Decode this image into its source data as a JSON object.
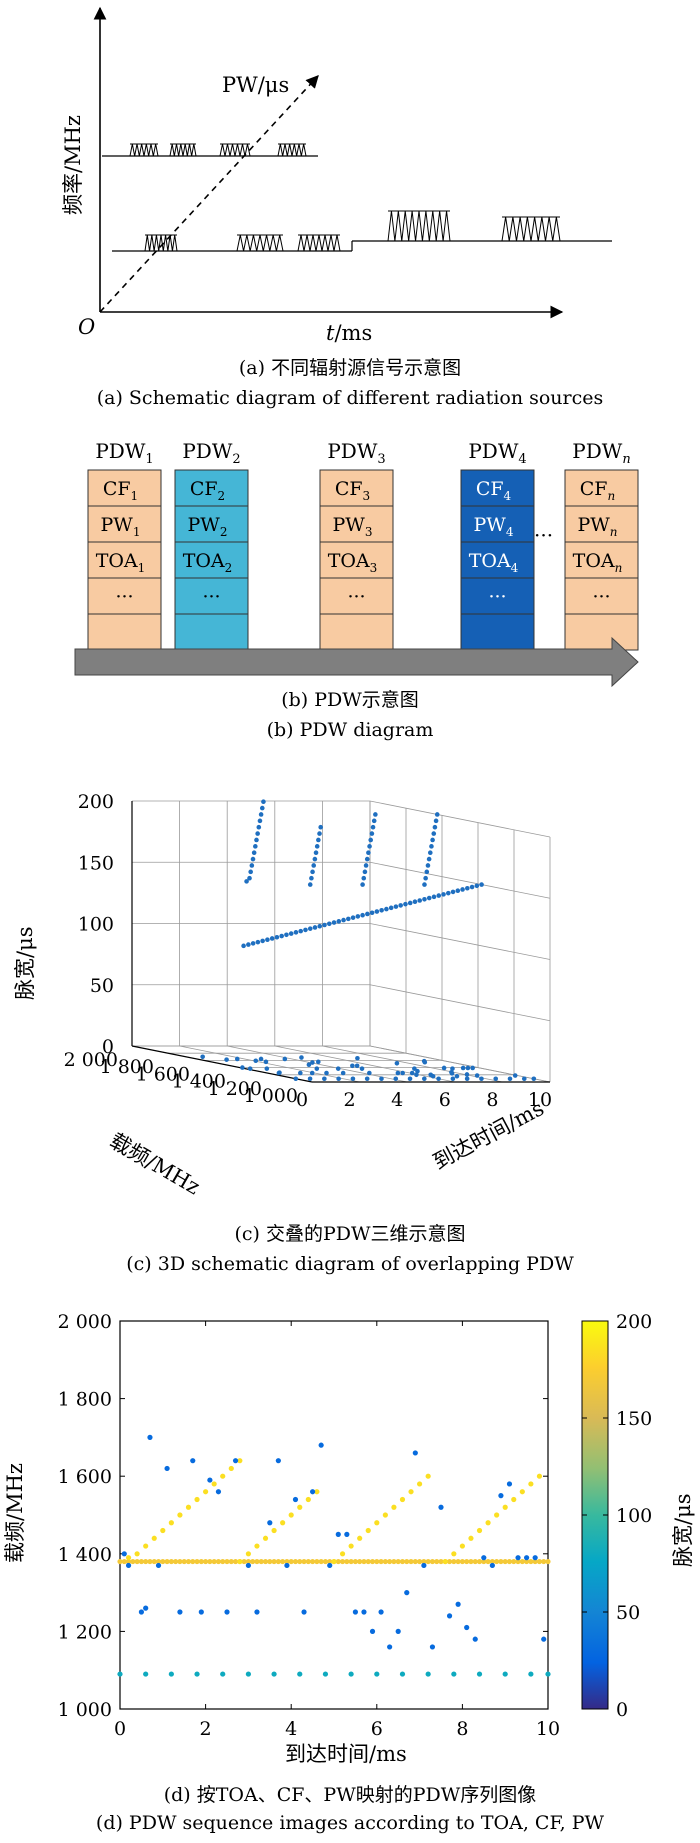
{
  "panel_a": {
    "y_axis_label": "频率/MHz",
    "x_axis_label_italic": "t",
    "x_axis_label_unit": "/ms",
    "diag_axis_label": "PW/μs",
    "origin_label": "O",
    "caption_cn": "(a) 不同辐射源信号示意图",
    "caption_en": "(a) Schematic diagram of different radiation sources"
  },
  "panel_b": {
    "columns": [
      {
        "header_base": "PDW",
        "header_sub": "1",
        "color": "#f8cba2",
        "dark": false,
        "cells": [
          {
            "base": "CF",
            "sub": "1"
          },
          {
            "base": "PW",
            "sub": "1"
          },
          {
            "base": "TOA",
            "sub": "1"
          },
          {
            "base": "···",
            "sub": ""
          },
          {
            "base": "",
            "sub": ""
          }
        ]
      },
      {
        "header_base": "PDW",
        "header_sub": "2",
        "color": "#45b6d6",
        "dark": false,
        "cells": [
          {
            "base": "CF",
            "sub": "2"
          },
          {
            "base": "PW",
            "sub": "2"
          },
          {
            "base": "TOA",
            "sub": "2"
          },
          {
            "base": "···",
            "sub": ""
          },
          {
            "base": "",
            "sub": ""
          }
        ]
      },
      {
        "header_base": "PDW",
        "header_sub": "3",
        "color": "#f8cba2",
        "dark": false,
        "cells": [
          {
            "base": "CF",
            "sub": "3"
          },
          {
            "base": "PW",
            "sub": "3"
          },
          {
            "base": "TOA",
            "sub": "3"
          },
          {
            "base": "···",
            "sub": ""
          },
          {
            "base": "",
            "sub": ""
          }
        ]
      },
      {
        "header_base": "PDW",
        "header_sub": "4",
        "color": "#1560b5",
        "dark": true,
        "cells": [
          {
            "base": "CF",
            "sub": "4"
          },
          {
            "base": "PW",
            "sub": "4"
          },
          {
            "base": "TOA",
            "sub": "4"
          },
          {
            "base": "···",
            "sub": ""
          },
          {
            "base": "",
            "sub": ""
          }
        ]
      },
      {
        "header_base": "PDW",
        "header_sub": "n",
        "color": "#f8cba2",
        "dark": false,
        "cells": [
          {
            "base": "CF",
            "sub": "n"
          },
          {
            "base": "PW",
            "sub": "n"
          },
          {
            "base": "TOA",
            "sub": "n"
          },
          {
            "base": "···",
            "sub": ""
          },
          {
            "base": "",
            "sub": ""
          }
        ]
      }
    ],
    "ellipsis": "···",
    "caption_cn": "(b) PDW示意图",
    "caption_en": "(b) PDW diagram"
  },
  "chart_data": [
    {
      "type": "scatter",
      "projection": "3d",
      "zlabel": "脉宽/μs",
      "ylabel": "载频/MHz",
      "xlabel": "到达时间/ms",
      "z_ticks": [
        "0",
        "50",
        "100",
        "150",
        "200"
      ],
      "y_ticks": [
        "1 000",
        "1 200",
        "1 400",
        "1 600",
        "1 800",
        "2 000"
      ],
      "x_ticks": [
        "0",
        "2",
        "4",
        "6",
        "8",
        "10"
      ],
      "xlim": [
        0,
        10
      ],
      "ylim": [
        1000,
        2000
      ],
      "zlim": [
        0,
        200
      ],
      "grid": true,
      "color": "#1f6fc0",
      "caption_cn": "(c) 交叠的PDW三维示意图",
      "caption_en": "(c) 3D schematic diagram of overlapping PDW"
    },
    {
      "type": "scatter",
      "xlabel": "到达时间/ms",
      "ylabel": "载频/MHz",
      "colorbar_label": "脉宽/μs",
      "x_ticks": [
        "0",
        "2",
        "4",
        "6",
        "8",
        "10"
      ],
      "y_ticks": [
        "1 000",
        "1 200",
        "1 400",
        "1 600",
        "1 800",
        "2 000"
      ],
      "colorbar_ticks": [
        "0",
        "50",
        "100",
        "150",
        "200"
      ],
      "xlim": [
        0,
        10
      ],
      "ylim": [
        1000,
        2000
      ],
      "clim": [
        0,
        200
      ],
      "caption_cn": "(d) 按TOA、CF、PW映射的PDW序列图像",
      "caption_en": "(d) PDW sequence images according to TOA, CF, PW",
      "series": [
        {
          "freq_const": 1090,
          "pw": 80,
          "x": [
            0,
            0.6,
            1.2,
            1.8,
            2.4,
            3.0,
            3.6,
            4.2,
            4.8,
            5.4,
            6.0,
            6.6,
            7.2,
            7.8,
            8.4,
            9.0,
            9.6,
            10.0
          ]
        },
        {
          "freq_const": 1380,
          "pw": 170,
          "x": [
            0,
            0.1,
            0.2,
            0.3,
            0.4,
            0.5,
            0.6,
            0.7,
            0.8,
            0.9,
            1.0,
            1.1,
            1.2,
            1.3,
            1.4,
            1.5,
            1.6,
            1.7,
            1.8,
            1.9,
            2.0,
            2.1,
            2.2,
            2.3,
            2.4,
            2.5,
            2.6,
            2.7,
            2.8,
            2.9,
            3.0,
            3.1,
            3.2,
            3.3,
            3.4,
            3.5,
            3.6,
            3.7,
            3.8,
            3.9,
            4.0,
            4.1,
            4.2,
            4.3,
            4.4,
            4.5,
            4.6,
            4.7,
            4.8,
            4.9,
            5.0,
            5.1,
            5.2,
            5.3,
            5.4,
            5.5,
            5.6,
            5.7,
            5.8,
            5.9,
            6.0,
            6.1,
            6.2,
            6.3,
            6.4,
            6.5,
            6.6,
            6.7,
            6.8,
            6.9,
            7.0,
            7.1,
            7.2,
            7.3,
            7.4,
            7.5,
            7.6,
            7.7,
            7.8,
            7.9,
            8.0,
            8.1,
            8.2,
            8.3,
            8.4,
            8.5,
            8.6,
            8.7,
            8.8,
            8.9,
            9.0,
            9.1,
            9.2,
            9.3,
            9.4,
            9.5,
            9.6,
            9.7,
            9.8,
            9.9,
            10.0
          ]
        },
        {
          "pw": 185,
          "x": [
            0.2,
            0.4,
            0.6,
            0.8,
            1.0,
            1.2,
            1.4,
            1.6,
            1.8,
            2.0,
            2.2,
            2.4,
            2.6,
            2.8,
            2.8,
            3.0,
            3.2,
            3.4,
            3.6,
            3.8,
            4.0,
            4.2,
            4.4,
            4.6,
            5.0,
            5.2,
            5.4,
            5.6,
            5.8,
            6.0,
            6.2,
            6.4,
            6.6,
            6.8,
            7.0,
            7.2,
            7.6,
            7.8,
            8.0,
            8.2,
            8.4,
            8.6,
            8.8,
            9.0,
            9.2,
            9.4,
            9.6,
            9.8
          ],
          "y": [
            1390,
            1400,
            1420,
            1440,
            1460,
            1480,
            1500,
            1520,
            1540,
            1560,
            1580,
            1600,
            1620,
            1640,
            1380,
            1400,
            1420,
            1440,
            1460,
            1480,
            1500,
            1520,
            1540,
            1560,
            1380,
            1400,
            1420,
            1440,
            1460,
            1480,
            1500,
            1520,
            1540,
            1560,
            1580,
            1600,
            1380,
            1400,
            1420,
            1440,
            1460,
            1480,
            1500,
            1520,
            1540,
            1560,
            1580,
            1600
          ]
        },
        {
          "pw": 30,
          "x": [
            0.1,
            0.2,
            0.5,
            0.6,
            0.7,
            0.9,
            1.1,
            1.4,
            1.7,
            1.9,
            2.1,
            2.3,
            2.5,
            2.7,
            3.0,
            3.2,
            3.5,
            3.7,
            3.9,
            4.1,
            4.3,
            4.5,
            4.7,
            4.9,
            5.1,
            5.3,
            5.5,
            5.7,
            5.9,
            6.1,
            6.3,
            6.5,
            6.7,
            6.9,
            7.1,
            7.3,
            7.5,
            7.7,
            7.9,
            8.1,
            8.3,
            8.5,
            8.7,
            8.9,
            9.1,
            9.3,
            9.5,
            9.7,
            9.9
          ],
          "y": [
            1400,
            1370,
            1250,
            1260,
            1700,
            1370,
            1620,
            1250,
            1640,
            1250,
            1590,
            1560,
            1250,
            1640,
            1370,
            1250,
            1480,
            1640,
            1370,
            1540,
            1250,
            1560,
            1680,
            1370,
            1450,
            1450,
            1250,
            1250,
            1200,
            1250,
            1160,
            1200,
            1300,
            1660,
            1370,
            1160,
            1520,
            1240,
            1270,
            1210,
            1180,
            1390,
            1370,
            1550,
            1580,
            1390,
            1390,
            1390,
            1180
          ]
        }
      ]
    }
  ]
}
